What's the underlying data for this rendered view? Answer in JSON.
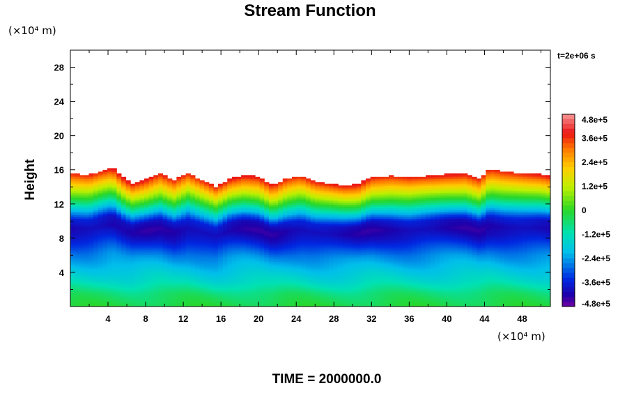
{
  "chart_data": {
    "type": "heatmap",
    "title": "Stream Function",
    "xlabel": "",
    "ylabel": "Height",
    "x_unit": "(×10⁴ m)",
    "y_unit": "(×10⁴ m)",
    "x_range": [
      0,
      51
    ],
    "y_range": [
      0,
      30
    ],
    "x_ticks": [
      4,
      8,
      12,
      16,
      20,
      24,
      28,
      32,
      36,
      40,
      44,
      48
    ],
    "y_ticks": [
      4,
      8,
      12,
      16,
      20,
      24,
      28
    ],
    "time_stamp": "t=2e+06 s",
    "footer": "TIME = 2000000.0",
    "colorbar": {
      "min": -480000,
      "max": 480000,
      "ticks": [
        {
          "value": 480000,
          "label": "4.8e+5"
        },
        {
          "value": 360000,
          "label": "3.6e+5"
        },
        {
          "value": 240000,
          "label": "2.4e+5"
        },
        {
          "value": 120000,
          "label": "1.2e+5"
        },
        {
          "value": 0,
          "label": "0"
        },
        {
          "value": -120000,
          "label": "-1.2e+5"
        },
        {
          "value": -240000,
          "label": "-2.4e+5"
        },
        {
          "value": -360000,
          "label": "-3.6e+5"
        },
        {
          "value": -480000,
          "label": "-4.8e+5"
        }
      ]
    },
    "field": {
      "top_boundary_x": [
        0,
        2,
        3.5,
        4.5,
        5.5,
        6.5,
        8,
        9.5,
        11,
        12.5,
        14,
        15.5,
        17,
        18.5,
        20,
        21.5,
        23,
        24.5,
        26,
        27.5,
        29,
        30.5,
        32,
        34,
        36,
        38,
        40,
        42,
        43.5,
        44.5,
        46,
        48,
        50,
        51
      ],
      "top_boundary_y": [
        15.6,
        15.4,
        16.0,
        16.3,
        15.2,
        14.4,
        14.9,
        15.6,
        14.8,
        15.6,
        14.8,
        14.0,
        15.0,
        15.4,
        15.2,
        14.2,
        15.0,
        15.3,
        14.6,
        14.4,
        14.2,
        14.3,
        15.2,
        15.3,
        15.1,
        15.3,
        15.5,
        15.6,
        15.0,
        16.1,
        15.8,
        15.6,
        15.5,
        15.3
      ],
      "profile_height": [
        0,
        1.5,
        3,
        4.5,
        6,
        7,
        8,
        9,
        10,
        11,
        12,
        13,
        14,
        15,
        16
      ],
      "profile_value": [
        -20000,
        -60000,
        -140000,
        -200000,
        -260000,
        -320000,
        -380000,
        -420000,
        -380000,
        -220000,
        -60000,
        80000,
        220000,
        360000,
        460000
      ]
    }
  }
}
